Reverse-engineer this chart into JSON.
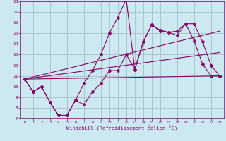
{
  "xlabel": "Windchill (Refroidissement éolien,°C)",
  "bg_color": "#cce8f0",
  "grid_color": "#a0b8c0",
  "line_color": "#880066",
  "xlim": [
    -0.5,
    23.5
  ],
  "ylim": [
    7,
    18
  ],
  "xticks": [
    0,
    1,
    2,
    3,
    4,
    5,
    6,
    7,
    8,
    9,
    10,
    11,
    12,
    13,
    14,
    15,
    16,
    17,
    18,
    19,
    20,
    21,
    22,
    23
  ],
  "yticks": [
    7,
    8,
    9,
    10,
    11,
    12,
    13,
    14,
    15,
    16,
    17,
    18
  ],
  "series_high_x": [
    0,
    1,
    2,
    3,
    4,
    5,
    6,
    7,
    8,
    9,
    10,
    11,
    12,
    13,
    14,
    15,
    16,
    17,
    18,
    19,
    20,
    21,
    22,
    23
  ],
  "series_high_y": [
    10.7,
    9.5,
    10.0,
    8.5,
    7.3,
    7.3,
    8.7,
    10.3,
    11.5,
    13.0,
    15.0,
    16.5,
    18.2,
    11.6,
    14.2,
    15.8,
    15.3,
    15.1,
    15.2,
    15.9,
    14.3,
    12.1,
    11.0,
    11.0
  ],
  "series_low_x": [
    0,
    1,
    2,
    3,
    4,
    5,
    6,
    7,
    8,
    9,
    10,
    11,
    12,
    13,
    14,
    15,
    16,
    17,
    18,
    19,
    20,
    21,
    22,
    23
  ],
  "series_low_y": [
    10.7,
    9.5,
    10.0,
    8.5,
    7.3,
    7.3,
    8.7,
    8.3,
    9.5,
    10.3,
    11.5,
    11.5,
    13.0,
    11.6,
    14.2,
    15.8,
    15.2,
    15.1,
    14.8,
    15.9,
    15.9,
    14.2,
    12.0,
    11.0
  ],
  "trend1_x": [
    0,
    23
  ],
  "trend1_y": [
    10.7,
    11.0
  ],
  "trend2_x": [
    0,
    23
  ],
  "trend2_y": [
    10.7,
    13.2
  ],
  "trend3_x": [
    0,
    23
  ],
  "trend3_y": [
    10.7,
    15.2
  ]
}
